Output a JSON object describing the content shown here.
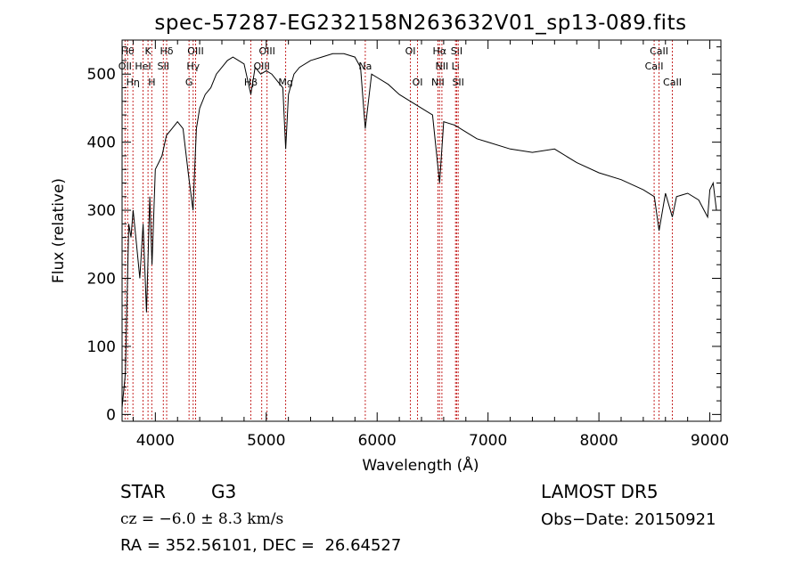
{
  "chart_data": {
    "type": "line",
    "title": "spec-57287-EG232158N263632V01_sp13-089.fits",
    "xlabel": "Wavelength (Å)",
    "ylabel": "Flux (relative)",
    "xlim": [
      3700,
      9100
    ],
    "ylim": [
      -10,
      550
    ],
    "x_ticks": [
      4000,
      5000,
      6000,
      7000,
      8000,
      9000
    ],
    "y_ticks": [
      0,
      100,
      200,
      300,
      400,
      500
    ],
    "grid": false,
    "series": [
      {
        "x": [
          3700,
          3730,
          3760,
          3780,
          3800,
          3830,
          3860,
          3890,
          3920,
          3950,
          3970,
          4000,
          4030,
          4060,
          4100,
          4150,
          4200,
          4250,
          4300,
          4340,
          4370,
          4400,
          4450,
          4500,
          4550,
          4600,
          4650,
          4700,
          4750,
          4800,
          4861,
          4900,
          4950,
          5000,
          5050,
          5100,
          5150,
          5175,
          5200,
          5250,
          5300,
          5400,
          5500,
          5600,
          5700,
          5800,
          5850,
          5893,
          5950,
          6000,
          6100,
          6200,
          6300,
          6400,
          6500,
          6563,
          6600,
          6700,
          6800,
          6900,
          7000,
          7200,
          7400,
          7600,
          7800,
          8000,
          8200,
          8400,
          8500,
          8542,
          8600,
          8662,
          8700,
          8800,
          8900,
          8980,
          9000,
          9030,
          9060
        ],
        "y": [
          10,
          60,
          280,
          260,
          300,
          250,
          200,
          280,
          150,
          320,
          220,
          360,
          370,
          380,
          410,
          420,
          430,
          420,
          350,
          300,
          420,
          450,
          470,
          480,
          500,
          510,
          520,
          525,
          520,
          515,
          470,
          510,
          500,
          505,
          500,
          490,
          480,
          390,
          470,
          500,
          510,
          520,
          525,
          530,
          530,
          525,
          510,
          420,
          500,
          495,
          485,
          470,
          460,
          450,
          440,
          340,
          430,
          425,
          415,
          405,
          400,
          390,
          385,
          390,
          370,
          355,
          345,
          330,
          320,
          270,
          325,
          290,
          320,
          325,
          315,
          290,
          330,
          340,
          300
        ]
      }
    ],
    "line_markers": [
      {
        "w": 3750,
        "row": 0,
        "label": "Hθ"
      },
      {
        "w": 3727,
        "row": 1,
        "label": "OII"
      },
      {
        "w": 3798,
        "row": 2,
        "label": "Hη"
      },
      {
        "w": 3889,
        "row": 1,
        "label": "HeI"
      },
      {
        "w": 3934,
        "row": 0,
        "label": "K"
      },
      {
        "w": 3968,
        "row": 2,
        "label": "H"
      },
      {
        "w": 4072,
        "row": 1,
        "label": "SII"
      },
      {
        "w": 4102,
        "row": 0,
        "label": "Hδ"
      },
      {
        "w": 4304,
        "row": 2,
        "label": "G"
      },
      {
        "w": 4341,
        "row": 1,
        "label": "Hγ"
      },
      {
        "w": 4363,
        "row": 0,
        "label": "OIII"
      },
      {
        "w": 4861,
        "row": 2,
        "label": "Hβ"
      },
      {
        "w": 4959,
        "row": 1,
        "label": "OIII"
      },
      {
        "w": 5007,
        "row": 0,
        "label": "OIII"
      },
      {
        "w": 5175,
        "row": 2,
        "label": "Mg"
      },
      {
        "w": 5893,
        "row": 1,
        "label": "Na"
      },
      {
        "w": 6300,
        "row": 0,
        "label": "OI"
      },
      {
        "w": 6364,
        "row": 2,
        "label": "OI"
      },
      {
        "w": 6548,
        "row": 2,
        "label": "NII"
      },
      {
        "w": 6563,
        "row": 0,
        "label": "Hα"
      },
      {
        "w": 6584,
        "row": 1,
        "label": "NII"
      },
      {
        "w": 6707,
        "row": 1,
        "label": "Li"
      },
      {
        "w": 6717,
        "row": 0,
        "label": "SII"
      },
      {
        "w": 6731,
        "row": 2,
        "label": "SII"
      },
      {
        "w": 8498,
        "row": 1,
        "label": "CaII"
      },
      {
        "w": 8542,
        "row": 0,
        "label": "CaII"
      },
      {
        "w": 8662,
        "row": 2,
        "label": "CaII"
      }
    ]
  },
  "info": {
    "class_label": "STAR",
    "subclass": "G3",
    "cz": "cz = −6.0 ± 8.3 km/s",
    "radec": "RA = 352.56101, DEC =  26.64527",
    "survey": "LAMOST DR5",
    "obs_date": "Obs−Date: 20150921"
  }
}
